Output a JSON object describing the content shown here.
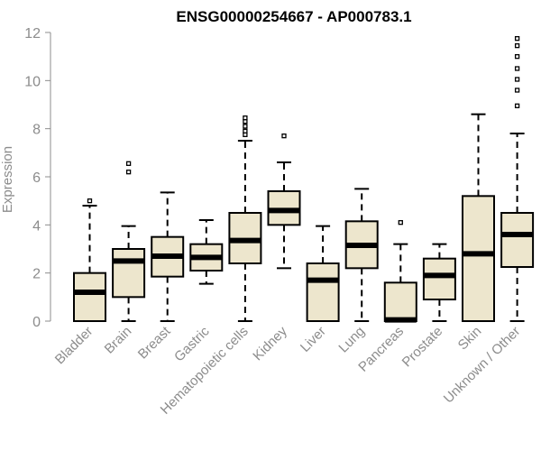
{
  "chart_data": {
    "type": "boxplot",
    "title": "ENSG00000254667 - AP000783.1",
    "xlabel": "",
    "ylabel": "Expression",
    "ylim": [
      0,
      12
    ],
    "yticks": [
      0,
      2,
      4,
      6,
      8,
      10,
      12
    ],
    "grid": false,
    "legend": "none",
    "colors": {
      "box_fill": "#ede6cd",
      "box_stroke": "#000000",
      "median": "#000000",
      "axis": "#8c8c8c"
    },
    "categories": [
      "Bladder",
      "Brain",
      "Breast",
      "Gastric",
      "Hematopoietic cells",
      "Kidney",
      "Liver",
      "Lung",
      "Pancreas",
      "Prostate",
      "Skin",
      "Unknown / Other"
    ],
    "boxes": [
      {
        "category": "Bladder",
        "whisker_low": 0,
        "q1": 0,
        "median": 1.2,
        "q3": 2.0,
        "whisker_high": 4.8,
        "outliers": [
          5.0
        ]
      },
      {
        "category": "Brain",
        "whisker_low": 0,
        "q1": 1.0,
        "median": 2.5,
        "q3": 3.0,
        "whisker_high": 3.95,
        "outliers": [
          6.2,
          6.55
        ]
      },
      {
        "category": "Breast",
        "whisker_low": 0,
        "q1": 1.85,
        "median": 2.7,
        "q3": 3.5,
        "whisker_high": 5.35,
        "outliers": []
      },
      {
        "category": "Gastric",
        "whisker_low": 1.55,
        "q1": 2.1,
        "median": 2.65,
        "q3": 3.2,
        "whisker_high": 4.2,
        "outliers": []
      },
      {
        "category": "Hematopoietic cells",
        "whisker_low": 0,
        "q1": 2.4,
        "median": 3.35,
        "q3": 4.5,
        "whisker_high": 7.5,
        "outliers": [
          7.75,
          7.9,
          8.1,
          8.3,
          8.45
        ]
      },
      {
        "category": "Kidney",
        "whisker_low": 2.2,
        "q1": 4.0,
        "median": 4.6,
        "q3": 5.4,
        "whisker_high": 6.6,
        "outliers": [
          7.7
        ]
      },
      {
        "category": "Liver",
        "whisker_low": 0,
        "q1": 0,
        "median": 1.7,
        "q3": 2.4,
        "whisker_high": 3.95,
        "outliers": []
      },
      {
        "category": "Lung",
        "whisker_low": 0,
        "q1": 2.2,
        "median": 3.15,
        "q3": 4.15,
        "whisker_high": 5.5,
        "outliers": []
      },
      {
        "category": "Pancreas",
        "whisker_low": 0,
        "q1": 0,
        "median": 0.05,
        "q3": 1.6,
        "whisker_high": 3.2,
        "outliers": [
          4.1
        ]
      },
      {
        "category": "Prostate",
        "whisker_low": 0,
        "q1": 0.9,
        "median": 1.9,
        "q3": 2.6,
        "whisker_high": 3.2,
        "outliers": []
      },
      {
        "category": "Skin",
        "whisker_low": 0,
        "q1": 0,
        "median": 2.8,
        "q3": 5.2,
        "whisker_high": 8.6,
        "outliers": []
      },
      {
        "category": "Unknown / Other",
        "whisker_low": 0,
        "q1": 2.25,
        "median": 3.6,
        "q3": 4.5,
        "whisker_high": 7.8,
        "outliers": [
          8.95,
          9.6,
          10.05,
          10.5,
          11.0,
          11.45,
          11.75
        ]
      }
    ]
  }
}
